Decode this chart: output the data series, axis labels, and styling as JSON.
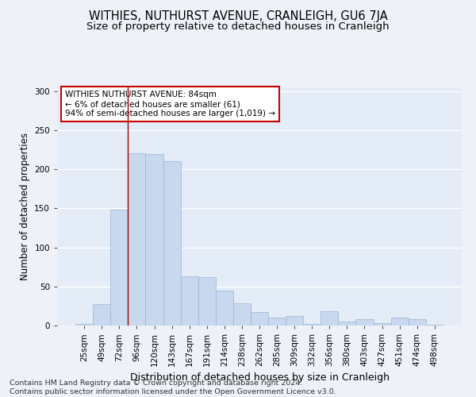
{
  "title": "WITHIES, NUTHURST AVENUE, CRANLEIGH, GU6 7JA",
  "subtitle": "Size of property relative to detached houses in Cranleigh",
  "xlabel": "Distribution of detached houses by size in Cranleigh",
  "ylabel": "Number of detached properties",
  "footer_line1": "Contains HM Land Registry data © Crown copyright and database right 2024.",
  "footer_line2": "Contains public sector information licensed under the Open Government Licence v3.0.",
  "bar_labels": [
    "25sqm",
    "49sqm",
    "72sqm",
    "96sqm",
    "120sqm",
    "143sqm",
    "167sqm",
    "191sqm",
    "214sqm",
    "238sqm",
    "262sqm",
    "285sqm",
    "309sqm",
    "332sqm",
    "356sqm",
    "380sqm",
    "403sqm",
    "427sqm",
    "451sqm",
    "474sqm",
    "498sqm"
  ],
  "bar_values": [
    2,
    27,
    148,
    221,
    220,
    210,
    63,
    62,
    45,
    28,
    17,
    10,
    12,
    2,
    18,
    5,
    8,
    3,
    10,
    8,
    1
  ],
  "bar_color": "#c8d8ee",
  "bar_edge_color": "#9ab4d4",
  "vline_x": 2.5,
  "vline_color": "#9b0000",
  "annotation_text": "WITHIES NUTHURST AVENUE: 84sqm\n← 6% of detached houses are smaller (61)\n94% of semi-detached houses are larger (1,019) →",
  "annotation_box_facecolor": "white",
  "annotation_box_edgecolor": "#cc0000",
  "ylim": [
    0,
    305
  ],
  "yticks": [
    0,
    50,
    100,
    150,
    200,
    250,
    300
  ],
  "bg_color": "#eef2f8",
  "plot_bg_color": "#e4ecf7",
  "grid_color": "#ffffff",
  "title_fontsize": 10.5,
  "subtitle_fontsize": 9.5,
  "ylabel_fontsize": 8.5,
  "xlabel_fontsize": 9,
  "tick_fontsize": 7.5,
  "annotation_fontsize": 7.5,
  "footer_fontsize": 6.8
}
